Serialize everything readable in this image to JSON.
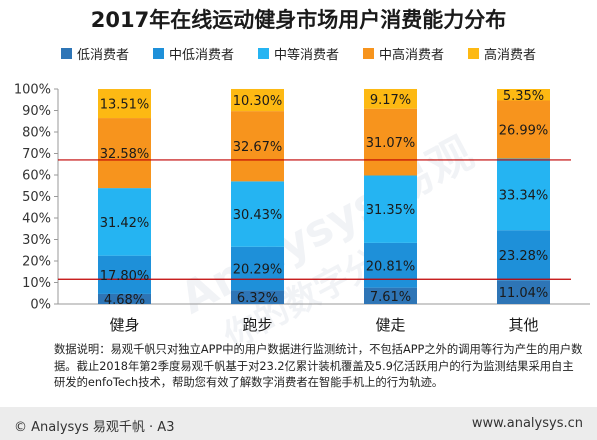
{
  "chart_data": {
    "type": "bar",
    "stacked": true,
    "title": "2017年在线运动健身市场用户消费能力分布",
    "categories": [
      "健身",
      "跑步",
      "健走",
      "其他"
    ],
    "series": [
      {
        "name": "低消费者",
        "color": "#2e75b6",
        "values": [
          4.68,
          6.32,
          7.61,
          11.04
        ],
        "labels": [
          "4.68%",
          "6.32%",
          "7.61%",
          "11.04%"
        ]
      },
      {
        "name": "中低消费者",
        "color": "#1e90d9",
        "values": [
          17.8,
          20.29,
          20.81,
          23.28
        ],
        "labels": [
          "17.80%",
          "20.29%",
          "20.81%",
          "23.28%"
        ]
      },
      {
        "name": "中等消费者",
        "color": "#25b4f2",
        "values": [
          31.42,
          30.43,
          31.35,
          33.34
        ],
        "labels": [
          "31.42%",
          "30.43%",
          "31.35%",
          "33.34%"
        ]
      },
      {
        "name": "中高消费者",
        "color": "#f7941d",
        "values": [
          32.58,
          32.67,
          31.07,
          26.99
        ],
        "labels": [
          "32.58%",
          "32.67%",
          "31.07%",
          "26.99%"
        ]
      },
      {
        "name": "高消费者",
        "color": "#fdb913",
        "values": [
          13.51,
          10.3,
          9.17,
          5.35
        ],
        "labels": [
          "13.51%",
          "10.30%",
          "9.17%",
          "5.35%"
        ]
      }
    ],
    "ylim": [
      0,
      100
    ],
    "yticks": [
      "0%",
      "10%",
      "20%",
      "30%",
      "40%",
      "50%",
      "60%",
      "70%",
      "80%",
      "90%",
      "100%"
    ],
    "reference_lines": [
      {
        "value": 11.5,
        "color": "#c00000"
      },
      {
        "value": 67,
        "color": "#c00000"
      }
    ],
    "legend_position": "top",
    "grid": false
  },
  "note": "数据说明：易观千帆只对独立APP中的用户数据进行监测统计，不包括APP之外的调用等行为产生的用户数据。截止2018年第2季度易观千帆基于对23.2亿累计装机覆盖及5.9亿活跃用户的行为监测结果采用自主研发的enfoTech技术，帮助您有效了解数字消费者在智能手机上的行为轨迹。",
  "footer": {
    "left": "© Analysys 易观千帆 · A3",
    "right": "www.analysys.cn"
  },
  "watermark": {
    "text": "Analysys 易观",
    "text2": "你的数字分析"
  }
}
